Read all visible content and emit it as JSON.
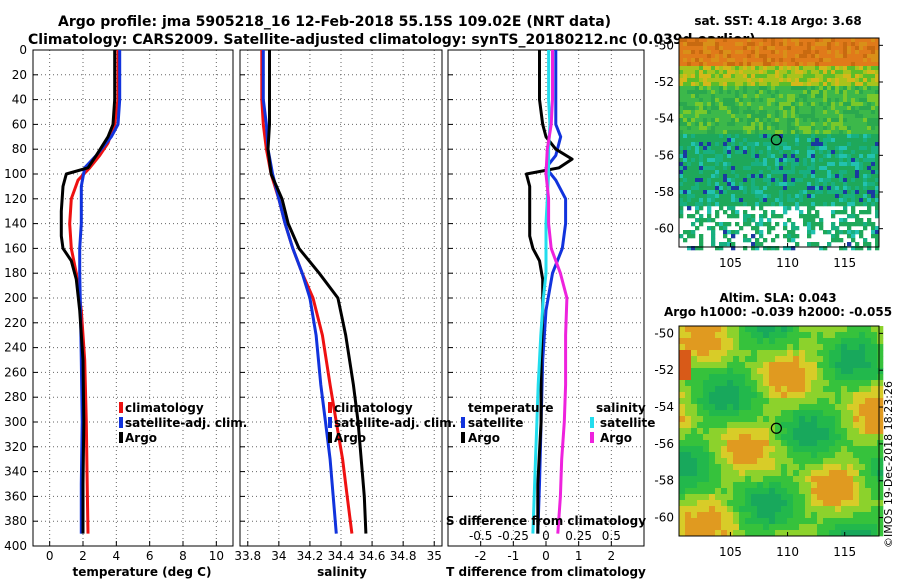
{
  "title_line1": "Argo profile: jma 5905218_16 12-Feb-2018 55.15S 109.02E (NRT data)",
  "title_line2": "Climatology: CARS2009. Satellite-adjusted climatology: synTS_20180212.nc (0.039d earlier)",
  "credit": "©IMOS 19-Dec-2018 18:23:26",
  "colors": {
    "climatology": "#ee1111",
    "satellite": "#1133dd",
    "argo": "#000000",
    "sal_satellite": "#22ddee",
    "sal_argo": "#ee22dd"
  },
  "chart_data": [
    {
      "type": "line",
      "name": "temperature",
      "xlabel": "temperature (deg C)",
      "xlim": [
        -1,
        11
      ],
      "ylim": [
        400,
        0
      ],
      "xticks": [
        "0",
        "2",
        "4",
        "6",
        "8",
        "10"
      ],
      "yticks": [
        "0",
        "20",
        "40",
        "60",
        "80",
        "100",
        "120",
        "140",
        "160",
        "180",
        "200",
        "220",
        "240",
        "260",
        "280",
        "300",
        "320",
        "340",
        "360",
        "380",
        "400"
      ],
      "legend": [
        "climatology",
        "satellite-adj. clim.",
        "Argo"
      ],
      "series": [
        {
          "name": "climatology",
          "color_key": "climatology",
          "points": [
            [
              4.1,
              0
            ],
            [
              4.1,
              40
            ],
            [
              3.9,
              60
            ],
            [
              3.5,
              75
            ],
            [
              3.0,
              85
            ],
            [
              2.4,
              95
            ],
            [
              1.7,
              105
            ],
            [
              1.3,
              120
            ],
            [
              1.2,
              140
            ],
            [
              1.3,
              160
            ],
            [
              1.6,
              180
            ],
            [
              1.9,
              210
            ],
            [
              2.1,
              250
            ],
            [
              2.2,
              300
            ],
            [
              2.25,
              350
            ],
            [
              2.3,
              390
            ]
          ]
        },
        {
          "name": "satellite-adj. clim.",
          "color_key": "satellite",
          "points": [
            [
              4.2,
              0
            ],
            [
              4.2,
              40
            ],
            [
              4.1,
              60
            ],
            [
              3.7,
              70
            ],
            [
              2.8,
              85
            ],
            [
              2.1,
              95
            ],
            [
              1.9,
              110
            ],
            [
              1.9,
              140
            ],
            [
              1.8,
              160
            ],
            [
              1.8,
              180
            ],
            [
              1.85,
              210
            ],
            [
              1.9,
              250
            ],
            [
              1.95,
              300
            ],
            [
              1.9,
              350
            ],
            [
              1.9,
              390
            ]
          ]
        },
        {
          "name": "Argo",
          "color_key": "argo",
          "points": [
            [
              3.9,
              0
            ],
            [
              3.9,
              40
            ],
            [
              3.8,
              60
            ],
            [
              3.5,
              70
            ],
            [
              2.8,
              85
            ],
            [
              2.3,
              95
            ],
            [
              1.0,
              100
            ],
            [
              0.8,
              110
            ],
            [
              0.7,
              130
            ],
            [
              0.7,
              150
            ],
            [
              0.8,
              160
            ],
            [
              1.3,
              170
            ],
            [
              1.6,
              185
            ],
            [
              1.8,
              210
            ],
            [
              2.0,
              250
            ],
            [
              2.05,
              300
            ],
            [
              2.0,
              350
            ],
            [
              2.0,
              390
            ]
          ]
        }
      ]
    },
    {
      "type": "line",
      "name": "salinity",
      "xlabel": "salinity",
      "xlim": [
        33.75,
        35.05
      ],
      "ylim": [
        400,
        0
      ],
      "xticks": [
        "33.8",
        "34",
        "34.2",
        "34.4",
        "34.6",
        "34.8",
        "35"
      ],
      "legend": [
        "climatology",
        "satellite-adj. clim.",
        "Argo"
      ],
      "series": [
        {
          "name": "climatology",
          "color_key": "climatology",
          "points": [
            [
              33.89,
              0
            ],
            [
              33.89,
              40
            ],
            [
              33.9,
              60
            ],
            [
              33.92,
              80
            ],
            [
              33.95,
              100
            ],
            [
              34.0,
              120
            ],
            [
              34.04,
              140
            ],
            [
              34.09,
              160
            ],
            [
              34.15,
              180
            ],
            [
              34.22,
              200
            ],
            [
              34.28,
              230
            ],
            [
              34.33,
              270
            ],
            [
              34.37,
              300
            ],
            [
              34.41,
              330
            ],
            [
              34.44,
              360
            ],
            [
              34.47,
              390
            ]
          ]
        },
        {
          "name": "satellite-adj. clim.",
          "color_key": "satellite",
          "points": [
            [
              33.9,
              0
            ],
            [
              33.9,
              40
            ],
            [
              33.92,
              60
            ],
            [
              33.93,
              80
            ],
            [
              33.96,
              100
            ],
            [
              34.0,
              120
            ],
            [
              34.04,
              140
            ],
            [
              34.09,
              160
            ],
            [
              34.15,
              180
            ],
            [
              34.2,
              200
            ],
            [
              34.24,
              230
            ],
            [
              34.27,
              270
            ],
            [
              34.3,
              300
            ],
            [
              34.33,
              330
            ],
            [
              34.35,
              360
            ],
            [
              34.37,
              390
            ]
          ]
        },
        {
          "name": "Argo",
          "color_key": "argo",
          "points": [
            [
              33.94,
              0
            ],
            [
              33.94,
              40
            ],
            [
              33.94,
              60
            ],
            [
              33.93,
              80
            ],
            [
              33.95,
              100
            ],
            [
              34.02,
              120
            ],
            [
              34.06,
              140
            ],
            [
              34.13,
              160
            ],
            [
              34.26,
              180
            ],
            [
              34.38,
              200
            ],
            [
              34.43,
              230
            ],
            [
              34.48,
              270
            ],
            [
              34.51,
              300
            ],
            [
              34.53,
              330
            ],
            [
              34.55,
              360
            ],
            [
              34.56,
              390
            ]
          ]
        }
      ]
    },
    {
      "type": "line",
      "name": "difference",
      "xlabel": "T difference from climatology",
      "xlabel_top": "S difference from climatology",
      "xlim": [
        -3,
        3
      ],
      "ylim": [
        400,
        0
      ],
      "xticks": [
        "-2",
        "-1",
        "0",
        "1",
        "2"
      ],
      "xticks_s": [
        "-0.5",
        "-0.25",
        "0",
        "0.25",
        "0.5"
      ],
      "legend_temperature": {
        "title": "temperature",
        "items": [
          "satellite",
          "Argo"
        ]
      },
      "legend_salinity": {
        "title": "salinity",
        "items": [
          "satellite",
          "Argo"
        ]
      },
      "series": [
        {
          "name": "T satellite",
          "color_key": "satellite",
          "points": [
            [
              0.3,
              0
            ],
            [
              0.3,
              40
            ],
            [
              0.3,
              60
            ],
            [
              0.45,
              70
            ],
            [
              0.3,
              85
            ],
            [
              0.0,
              95
            ],
            [
              0.3,
              105
            ],
            [
              0.6,
              120
            ],
            [
              0.6,
              140
            ],
            [
              0.5,
              160
            ],
            [
              0.2,
              180
            ],
            [
              0.0,
              210
            ],
            [
              -0.1,
              250
            ],
            [
              -0.15,
              300
            ],
            [
              -0.2,
              350
            ],
            [
              -0.25,
              390
            ]
          ]
        },
        {
          "name": "T Argo",
          "color_key": "argo",
          "points": [
            [
              -0.2,
              0
            ],
            [
              -0.2,
              40
            ],
            [
              -0.1,
              60
            ],
            [
              0.0,
              70
            ],
            [
              0.3,
              80
            ],
            [
              0.8,
              88
            ],
            [
              0.4,
              95
            ],
            [
              -0.6,
              100
            ],
            [
              -0.5,
              110
            ],
            [
              -0.5,
              130
            ],
            [
              -0.5,
              150
            ],
            [
              -0.4,
              160
            ],
            [
              -0.2,
              170
            ],
            [
              -0.1,
              185
            ],
            [
              -0.1,
              210
            ],
            [
              -0.15,
              250
            ],
            [
              -0.15,
              300
            ],
            [
              -0.25,
              350
            ],
            [
              -0.25,
              390
            ]
          ]
        },
        {
          "name": "S satellite",
          "color_key": "sal_satellite",
          "points": [
            [
              0.02,
              0
            ],
            [
              0.02,
              40
            ],
            [
              0.03,
              60
            ],
            [
              0.02,
              80
            ],
            [
              0.02,
              100
            ],
            [
              0.01,
              120
            ],
            [
              0.0,
              140
            ],
            [
              0.0,
              160
            ],
            [
              0.0,
              180
            ],
            [
              -0.02,
              200
            ],
            [
              -0.04,
              230
            ],
            [
              -0.06,
              270
            ],
            [
              -0.07,
              300
            ],
            [
              -0.08,
              330
            ],
            [
              -0.09,
              360
            ],
            [
              -0.1,
              390
            ]
          ]
        },
        {
          "name": "S Argo",
          "color_key": "sal_argo",
          "points": [
            [
              0.05,
              0
            ],
            [
              0.05,
              40
            ],
            [
              0.04,
              60
            ],
            [
              0.01,
              80
            ],
            [
              0.0,
              100
            ],
            [
              0.02,
              120
            ],
            [
              0.02,
              140
            ],
            [
              0.04,
              160
            ],
            [
              0.11,
              180
            ],
            [
              0.16,
              200
            ],
            [
              0.15,
              230
            ],
            [
              0.15,
              270
            ],
            [
              0.14,
              300
            ],
            [
              0.12,
              330
            ],
            [
              0.11,
              360
            ],
            [
              0.09,
              390
            ]
          ]
        }
      ]
    },
    {
      "type": "heatmap",
      "name": "sst_map",
      "title": "sat. SST: 4.18 Argo: 3.68",
      "xticks": [
        "105",
        "110",
        "115"
      ],
      "yticks": [
        "-50",
        "-52",
        "-54",
        "-56",
        "-58",
        "-60"
      ],
      "xlim": [
        100.5,
        118
      ],
      "ylim": [
        -61,
        -49.6
      ],
      "marker": {
        "lon": 109.02,
        "lat": -55.15
      }
    },
    {
      "type": "heatmap",
      "name": "sla_map",
      "title": "Altim. SLA: 0.043",
      "subtitle": "Argo h1000: -0.039 h2000: -0.055",
      "xticks": [
        "105",
        "110",
        "115"
      ],
      "yticks": [
        "-50",
        "-52",
        "-54",
        "-56",
        "-58",
        "-60"
      ],
      "xlim": [
        100.5,
        118
      ],
      "ylim": [
        -61,
        -49.6
      ],
      "marker": {
        "lon": 109.02,
        "lat": -55.15
      }
    }
  ]
}
